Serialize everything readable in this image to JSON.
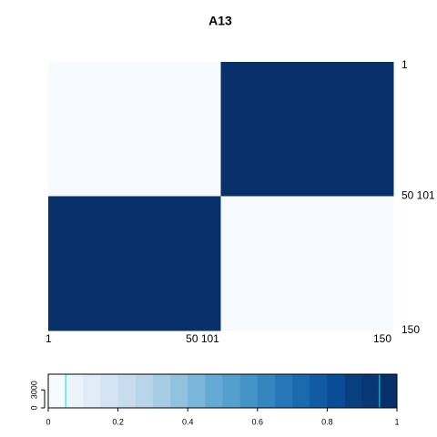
{
  "chart_data": {
    "type": "heatmap",
    "title": "A13",
    "matrix": [
      [
        0,
        1
      ],
      [
        1,
        0
      ]
    ],
    "col_labels": [
      "1",
      "50 101",
      "150"
    ],
    "row_labels": [
      "1",
      "50 101",
      "150"
    ],
    "color_key": {
      "breaks": [
        0,
        0.05,
        0.1,
        0.15,
        0.2,
        0.25,
        0.3,
        0.35,
        0.4,
        0.45,
        0.5,
        0.55,
        0.6,
        0.65,
        0.7,
        0.75,
        0.8,
        0.85,
        0.9,
        0.95,
        1
      ],
      "colors": [
        "#f7fbff",
        "#ebf3fb",
        "#e0ecf8",
        "#d4e4f4",
        "#c8dcf0",
        "#b9d5ea",
        "#a6cde4",
        "#91c3de",
        "#7ab6d9",
        "#65aad4",
        "#549fcd",
        "#4493c7",
        "#3585bf",
        "#2777b8",
        "#1b69af",
        "#105ba4",
        "#084d96",
        "#08407f",
        "#083775",
        "#08306b"
      ],
      "counts": [
        5625,
        0,
        0,
        0,
        0,
        0,
        0,
        0,
        0,
        0,
        0,
        0,
        0,
        0,
        0,
        0,
        0,
        0,
        0,
        5625
      ],
      "histogram_color": "#00e5ee",
      "xlim": [
        0,
        1
      ],
      "xticks": [
        0,
        0.2,
        0.4,
        0.6,
        0.8,
        1
      ],
      "ylim": [
        0,
        5625
      ],
      "yticks": [
        0,
        3000
      ]
    }
  }
}
